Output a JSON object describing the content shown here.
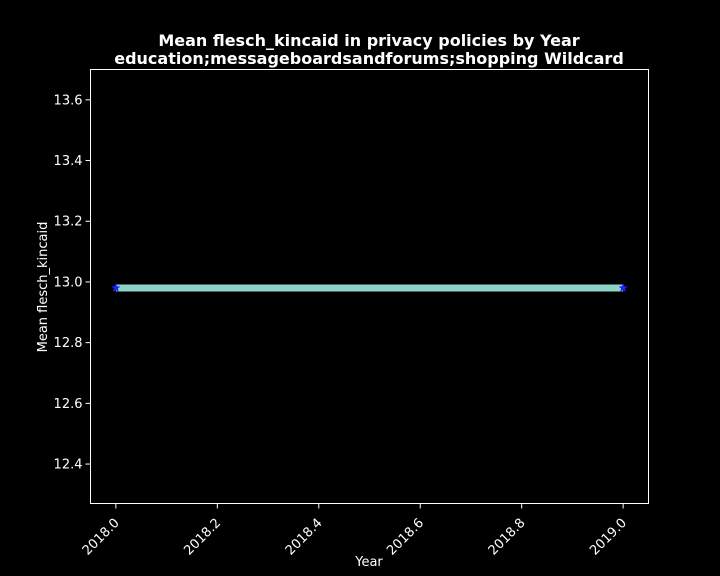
{
  "chart_data": {
    "type": "line",
    "title": "Mean flesch_kincaid in privacy policies by Year",
    "subtitle": "education;messageboardsandforums;shopping Wildcard",
    "xlabel": "Year",
    "ylabel": "Mean flesch_kincaid",
    "xlim": [
      1999.95,
      2019.05
    ],
    "ylim": [
      12.27,
      13.7
    ],
    "x_ticks": [
      2018.0,
      2018.2,
      2018.4,
      2018.6,
      2018.8,
      2019.0
    ],
    "x_tick_labels": [
      "2018.0",
      "2018.2",
      "2018.4",
      "2018.6",
      "2018.8",
      "2019.0"
    ],
    "y_ticks": [
      12.4,
      12.6,
      12.8,
      13.0,
      13.2,
      13.4,
      13.6
    ],
    "y_tick_labels": [
      "12.4",
      "12.6",
      "12.8",
      "13.0",
      "13.2",
      "13.4",
      "13.6"
    ],
    "grid": false,
    "legend": "none",
    "series": [
      {
        "x": [
          2018.0,
          2019.0
        ],
        "y": [
          12.98,
          12.98
        ],
        "line_color": "#8dd3c7",
        "marker_color": "#1f1fff",
        "marker": "star"
      }
    ]
  },
  "colors": {
    "background": "#000000",
    "axes": "#ffffff",
    "text": "#ffffff"
  }
}
